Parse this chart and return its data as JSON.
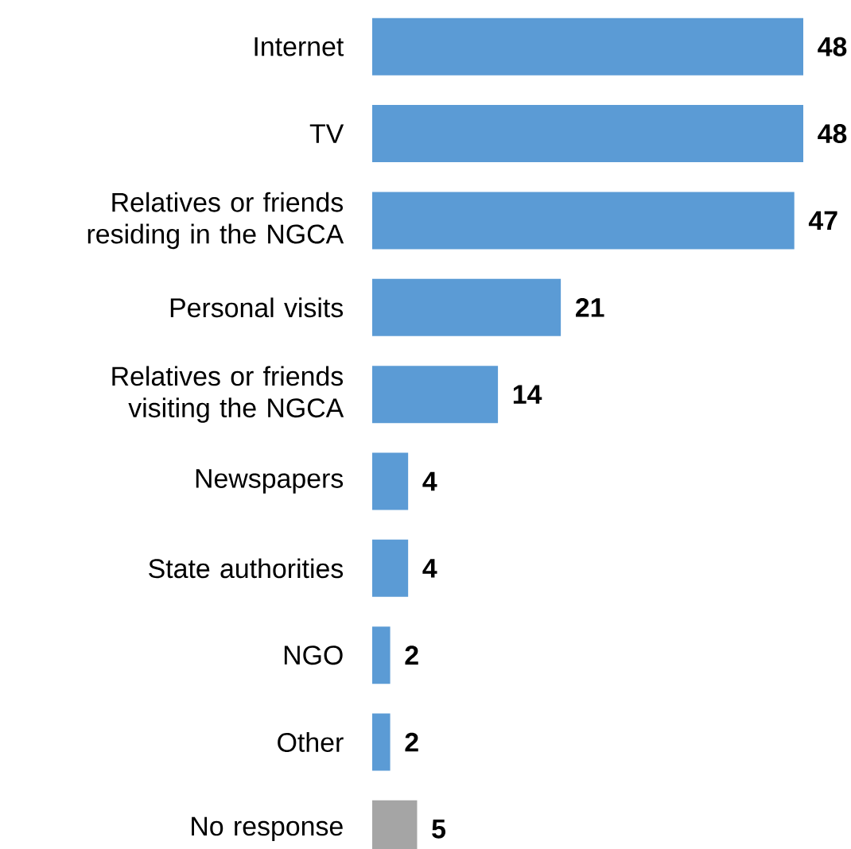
{
  "chart_data": {
    "type": "bar",
    "orientation": "horizontal",
    "data_labels": true,
    "categories": [
      "Internet",
      "TV",
      "Relatives or friends residing in the NGCA",
      "Personal visits",
      "Relatives or friends visiting the NGCA",
      "Newspapers",
      "State authorities",
      "NGO",
      "Other",
      "No response"
    ],
    "values": [
      48,
      48,
      47,
      21,
      14,
      4,
      4,
      2,
      2,
      5
    ],
    "colors": [
      "#5b9bd5",
      "#5b9bd5",
      "#5b9bd5",
      "#5b9bd5",
      "#5b9bd5",
      "#5b9bd5",
      "#5b9bd5",
      "#5b9bd5",
      "#5b9bd5",
      "#a5a5a5"
    ]
  }
}
